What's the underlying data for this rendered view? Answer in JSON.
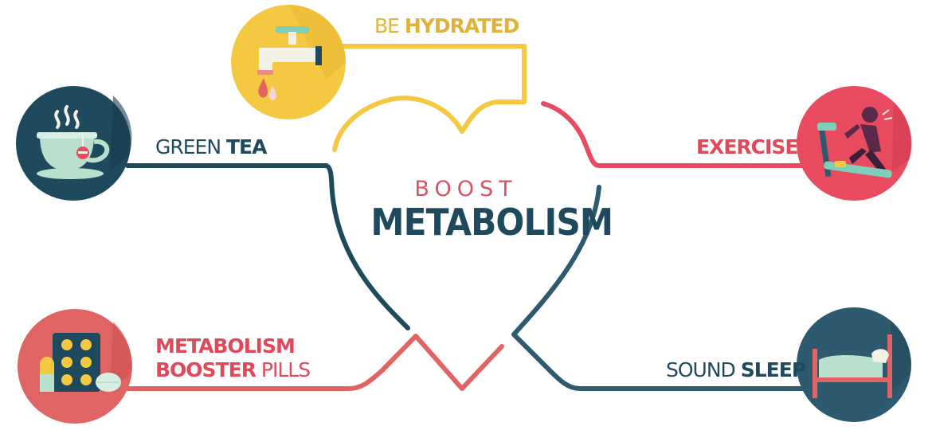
{
  "center": {
    "top_line": "BOOST",
    "main_line": "METABOLISM"
  },
  "items": {
    "hydrated": {
      "light": "BE ",
      "bold": "HYDRATED",
      "icon": "water-tap-icon",
      "color": "#f5c842"
    },
    "green_tea": {
      "light": "GREEN ",
      "bold": "TEA",
      "icon": "tea-cup-icon",
      "color": "#1f4a5d"
    },
    "exercise": {
      "light": "",
      "bold": "EXERCISE",
      "icon": "treadmill-runner-icon",
      "color": "#e84a5f"
    },
    "pills": {
      "bold_1": "METABOLISM",
      "bold_2": "BOOSTER",
      "light_2": " PILLS",
      "icon": "pills-icon",
      "color": "#e06464"
    },
    "sleep": {
      "light": "SOUND ",
      "bold": "SLEEP",
      "icon": "bed-icon",
      "color": "#2d5a6e"
    }
  },
  "colors": {
    "yellow": "#f5c842",
    "teal": "#1f4a5d",
    "red": "#e84a5f",
    "coral": "#e06464"
  }
}
